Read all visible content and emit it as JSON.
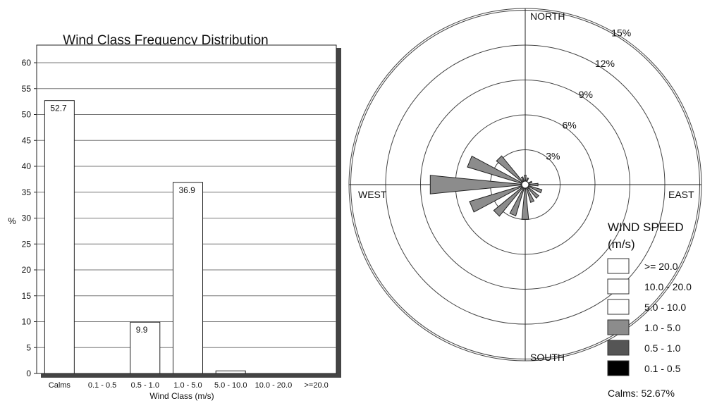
{
  "chart_data": [
    {
      "type": "bar",
      "title": "Wind Class Frequency Distribution",
      "xlabel": "Wind Class (m/s)",
      "ylabel": "%",
      "ylim": [
        0,
        60
      ],
      "yticks": [
        0,
        5,
        10,
        15,
        20,
        25,
        30,
        35,
        40,
        45,
        50,
        55,
        60
      ],
      "grid": true,
      "categories": [
        "Calms",
        "0.1 - 0.5",
        "0.5 - 1.0",
        "1.0 - 5.0",
        "5.0 - 10.0",
        "10.0 - 20.0",
        ">=20.0"
      ],
      "values": [
        52.7,
        0,
        9.9,
        36.9,
        0.5,
        0,
        0
      ],
      "data_labels": [
        "52.7",
        "",
        "9.9",
        "36.9",
        "",
        "",
        ""
      ]
    },
    {
      "type": "windrose",
      "directions": {
        "north": "NORTH",
        "south": "SOUTH",
        "east": "EAST",
        "west": "WEST"
      },
      "rings": [
        3,
        6,
        9,
        12,
        15
      ],
      "ring_labels": [
        "3%",
        "6%",
        "9%",
        "12%",
        "15%"
      ],
      "petals": [
        {
          "bearing": 0,
          "value": 0.5
        },
        {
          "bearing": 22.5,
          "value": 0.3
        },
        {
          "bearing": 67.5,
          "value": 0.3
        },
        {
          "bearing": 90,
          "value": 0.8
        },
        {
          "bearing": 112.5,
          "value": 1.2
        },
        {
          "bearing": 135,
          "value": 1.2
        },
        {
          "bearing": 157.5,
          "value": 1.3
        },
        {
          "bearing": 180,
          "value": 2.7
        },
        {
          "bearing": 202.5,
          "value": 2.5
        },
        {
          "bearing": 225,
          "value": 3.2
        },
        {
          "bearing": 247.5,
          "value": 4.7
        },
        {
          "bearing": 270,
          "value": 7.9
        },
        {
          "bearing": 292.5,
          "value": 4.9
        },
        {
          "bearing": 315,
          "value": 2.9
        },
        {
          "bearing": 337.5,
          "value": 0.4
        }
      ],
      "legend": {
        "title_line1": "WIND SPEED",
        "title_line2": "(m/s)",
        "items": [
          {
            "label": ">= 20.0",
            "color": "#ffffff"
          },
          {
            "label": "10.0 - 20.0",
            "color": "#ffffff"
          },
          {
            "label": "5.0 - 10.0",
            "color": "#ffffff"
          },
          {
            "label": "1.0 - 5.0",
            "color": "#8c8c8c"
          },
          {
            "label": "0.5 - 1.0",
            "color": "#555555"
          },
          {
            "label": "0.1 - 0.5",
            "color": "#000000"
          }
        ],
        "calms_text": "Calms: 52.67%"
      },
      "petal_color": "#8c8c8c"
    }
  ]
}
